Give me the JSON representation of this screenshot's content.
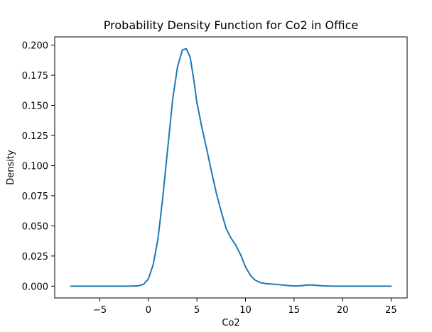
{
  "chart_data": {
    "type": "line",
    "title": "Probability Density Function for Co2 in Office",
    "xlabel": "Co2",
    "ylabel": "Density",
    "xlim": [
      -9.65,
      26.65
    ],
    "ylim": [
      -0.0098,
      0.2068
    ],
    "xticks": [
      -5,
      0,
      5,
      10,
      15,
      20,
      25
    ],
    "xtick_labels": [
      "−5",
      "0",
      "5",
      "10",
      "15",
      "20",
      "25"
    ],
    "yticks": [
      0.0,
      0.025,
      0.05,
      0.075,
      0.1,
      0.125,
      0.15,
      0.175,
      0.2
    ],
    "ytick_labels": [
      "0.000",
      "0.025",
      "0.050",
      "0.075",
      "0.100",
      "0.125",
      "0.150",
      "0.175",
      "0.200"
    ],
    "grid": false,
    "series": [
      {
        "color": "#1f77b4",
        "x": [
          -8,
          -5,
          -3,
          -2,
          -1,
          -0.5,
          0,
          0.5,
          1,
          1.5,
          2,
          2.5,
          3,
          3.5,
          3.9,
          4.3,
          4.7,
          5,
          5.5,
          6,
          6.5,
          7,
          7.5,
          8,
          8.5,
          9,
          9.5,
          10,
          10.5,
          11,
          11.5,
          12,
          12.5,
          13,
          13.5,
          14,
          14.5,
          15,
          15.5,
          16,
          16.5,
          17,
          17.5,
          18,
          19,
          20,
          22,
          25
        ],
        "y": [
          0.0,
          0.0,
          0.0,
          0.0,
          0.0003,
          0.0015,
          0.006,
          0.018,
          0.04,
          0.075,
          0.115,
          0.155,
          0.182,
          0.196,
          0.197,
          0.19,
          0.17,
          0.152,
          0.132,
          0.114,
          0.095,
          0.077,
          0.062,
          0.048,
          0.04,
          0.034,
          0.026,
          0.016,
          0.009,
          0.005,
          0.003,
          0.0022,
          0.0018,
          0.0015,
          0.0012,
          0.0008,
          0.0004,
          0.0001,
          0.0002,
          0.0006,
          0.001,
          0.0009,
          0.0005,
          0.0002,
          0.0,
          0.0,
          0.0,
          0.0
        ]
      }
    ]
  }
}
